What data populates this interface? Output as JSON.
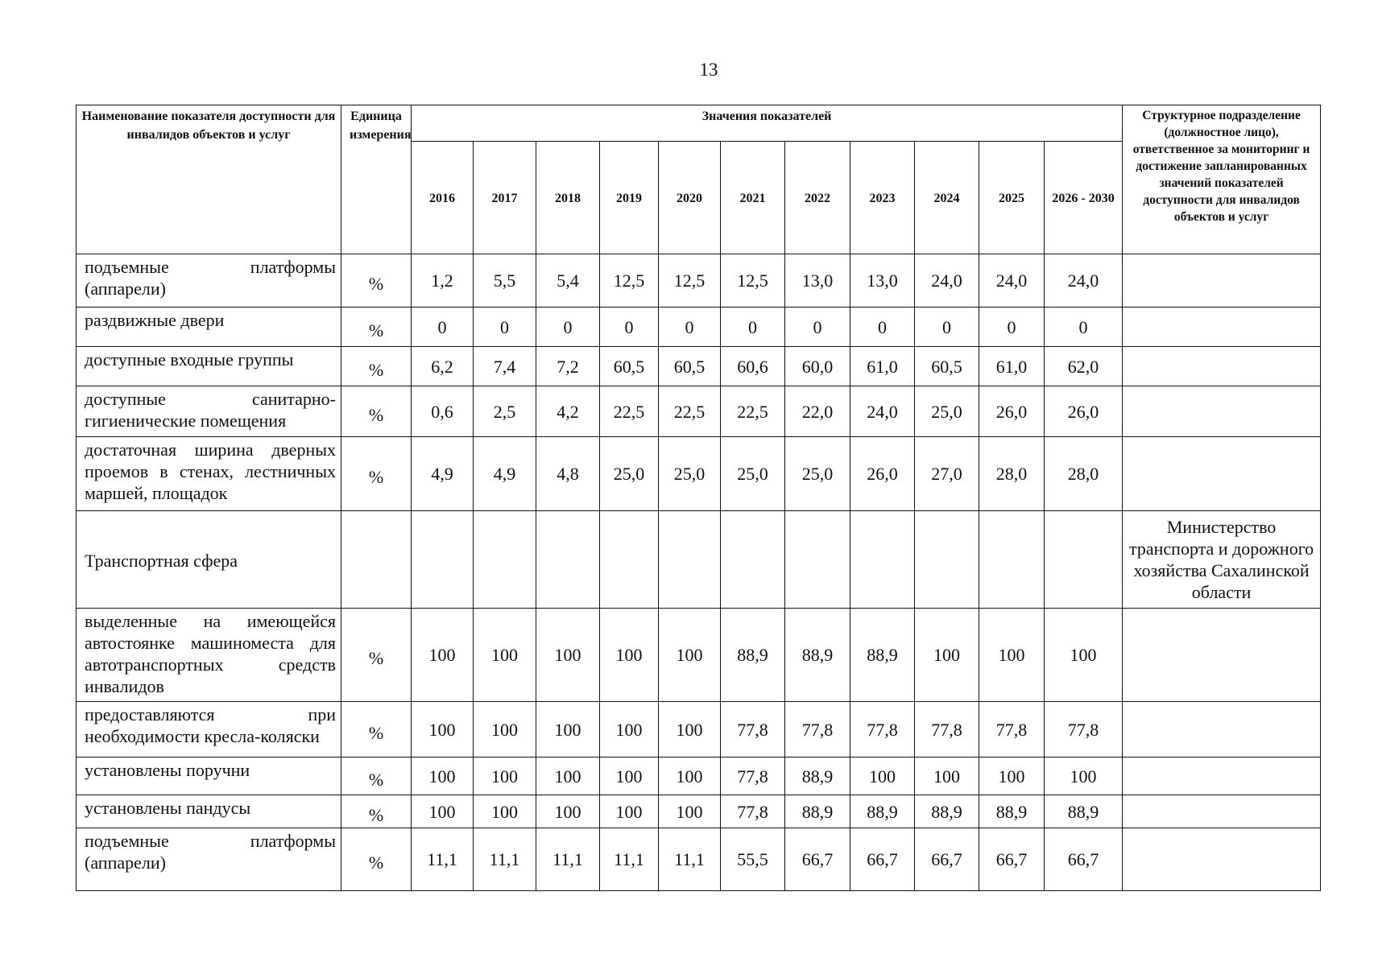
{
  "page_number": "13",
  "header": {
    "name": "Наименование показателя доступности для инвалидов объектов и услуг",
    "unit": "Единица измерения",
    "values_group": "Значения показателей",
    "years": [
      "2016",
      "2017",
      "2018",
      "2019",
      "2020",
      "2021",
      "2022",
      "2023",
      "2024",
      "2025",
      "2026 - 2030"
    ],
    "responsible": "Структурное подразделение (должностное лицо), ответственное за мониторинг и достижение запланированных значений показателей доступности для инвалидов объектов и услуг"
  },
  "rows": [
    {
      "name": "подъемные платформы (аппарели)",
      "unit": "%",
      "values": [
        "1,2",
        "5,5",
        "5,4",
        "12,5",
        "12,5",
        "12,5",
        "13,0",
        "13,0",
        "24,0",
        "24,0",
        "24,0"
      ],
      "responsible": ""
    },
    {
      "name": "раздвижные двери",
      "unit": "%",
      "values": [
        "0",
        "0",
        "0",
        "0",
        "0",
        "0",
        "0",
        "0",
        "0",
        "0",
        "0"
      ],
      "responsible": ""
    },
    {
      "name": "доступные входные группы",
      "unit": "%",
      "values": [
        "6,2",
        "7,4",
        "7,2",
        "60,5",
        "60,5",
        "60,6",
        "60,0",
        "61,0",
        "60,5",
        "61,0",
        "62,0"
      ],
      "responsible": ""
    },
    {
      "name": "доступные санитарно-гигиенические помещения",
      "unit": "%",
      "values": [
        "0,6",
        "2,5",
        "4,2",
        "22,5",
        "22,5",
        "22,5",
        "22,0",
        "24,0",
        "25,0",
        "26,0",
        "26,0"
      ],
      "responsible": ""
    },
    {
      "name": "достаточная ширина дверных проемов в стенах, лестничных маршей, площадок",
      "unit": "%",
      "values": [
        "4,9",
        "4,9",
        "4,8",
        "25,0",
        "25,0",
        "25,0",
        "25,0",
        "26,0",
        "27,0",
        "28,0",
        "28,0"
      ],
      "responsible": ""
    },
    {
      "name": "Транспортная сфера",
      "unit": "",
      "values": [
        "",
        "",
        "",
        "",
        "",
        "",
        "",
        "",
        "",
        "",
        ""
      ],
      "responsible": "Министерство транспорта и дорожного хозяйства Сахалинской области"
    },
    {
      "name": "выделенные на имеющейся автостоянке машиноместа для автотранспортных средств инвалидов",
      "unit": "%",
      "values": [
        "100",
        "100",
        "100",
        "100",
        "100",
        "88,9",
        "88,9",
        "88,9",
        "100",
        "100",
        "100"
      ],
      "responsible": ""
    },
    {
      "name": "предоставляются при необходимости кресла-коляски",
      "unit": "%",
      "values": [
        "100",
        "100",
        "100",
        "100",
        "100",
        "77,8",
        "77,8",
        "77,8",
        "77,8",
        "77,8",
        "77,8"
      ],
      "responsible": ""
    },
    {
      "name": "установлены поручни",
      "unit": "%",
      "values": [
        "100",
        "100",
        "100",
        "100",
        "100",
        "77,8",
        "88,9",
        "100",
        "100",
        "100",
        "100"
      ],
      "responsible": ""
    },
    {
      "name": "установлены пандусы",
      "unit": "%",
      "values": [
        "100",
        "100",
        "100",
        "100",
        "100",
        "77,8",
        "88,9",
        "88,9",
        "88,9",
        "88,9",
        "88,9"
      ],
      "responsible": ""
    },
    {
      "name": "подъемные платформы (аппарели)",
      "unit": "%",
      "values": [
        "11,1",
        "11,1",
        "11,1",
        "11,1",
        "11,1",
        "55,5",
        "66,7",
        "66,7",
        "66,7",
        "66,7",
        "66,7"
      ],
      "responsible": ""
    }
  ]
}
